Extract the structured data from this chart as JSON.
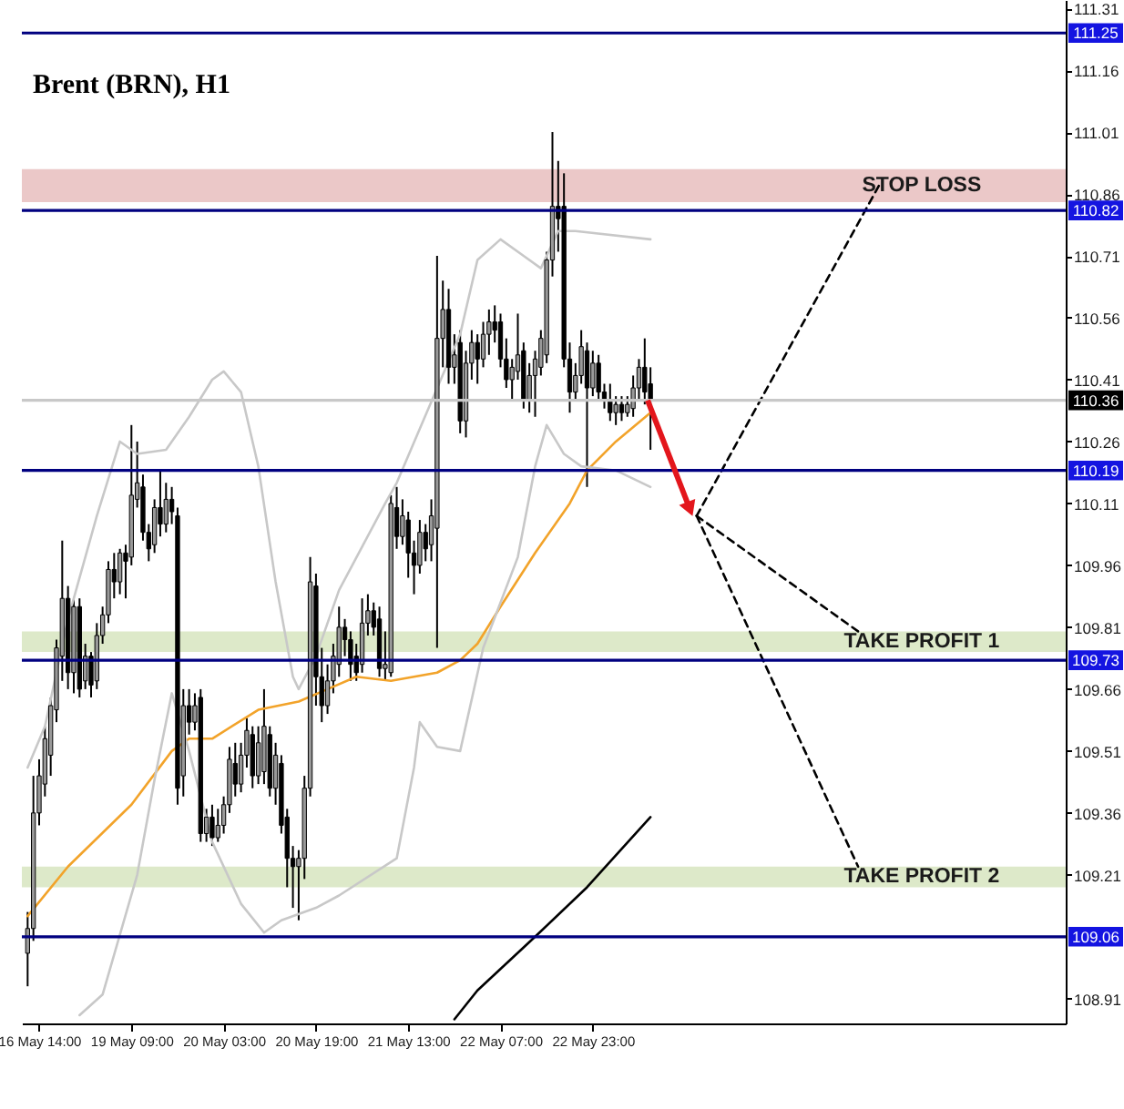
{
  "chart_data": {
    "type": "candlestick",
    "title": "Brent (BRN), H1",
    "categories": [
      null,
      null,
      "16 May 14:00",
      null,
      null,
      null,
      null,
      null,
      null,
      null,
      null,
      null,
      null,
      null,
      null,
      null,
      null,
      null,
      "19 May 09:00",
      null,
      null,
      null,
      null,
      null,
      null,
      null,
      null,
      null,
      null,
      null,
      null,
      null,
      null,
      null,
      "20 May 03:00",
      null,
      null,
      null,
      null,
      null,
      null,
      null,
      null,
      null,
      null,
      null,
      null,
      null,
      null,
      null,
      "20 May 19:00",
      null,
      null,
      null,
      null,
      null,
      null,
      null,
      null,
      null,
      null,
      null,
      null,
      null,
      null,
      null,
      "21 May 13:00",
      null,
      null,
      null,
      null,
      null,
      null,
      null,
      null,
      null,
      null,
      null,
      null,
      null,
      null,
      null,
      "22 May 07:00",
      null,
      null,
      null,
      null,
      null,
      null,
      null,
      null,
      null,
      null,
      null,
      null,
      null,
      null,
      null,
      "22 May 23:00",
      null,
      null,
      null,
      null,
      null,
      null,
      null,
      null,
      null,
      null,
      null,
      null,
      null,
      null,
      null,
      null,
      null,
      null,
      null,
      null,
      null,
      null,
      null,
      null,
      null,
      null,
      null,
      null,
      null,
      null,
      null,
      null,
      null,
      null,
      null,
      null,
      null,
      null,
      null,
      null,
      null,
      null,
      null,
      null,
      null,
      null,
      null,
      null,
      null,
      null,
      null,
      null,
      null,
      null,
      null,
      null,
      null,
      null,
      null,
      null,
      null,
      null,
      null,
      null,
      null,
      null,
      null,
      null,
      null,
      null,
      null,
      null,
      null,
      null,
      null,
      null,
      null,
      null,
      null,
      null,
      null
    ],
    "ohlc": [
      [
        109.02,
        109.12,
        108.94,
        109.08
      ],
      [
        109.08,
        109.45,
        109.05,
        109.36
      ],
      [
        109.36,
        109.49,
        109.33,
        109.45
      ],
      [
        109.43,
        109.57,
        109.4,
        109.54
      ],
      [
        109.5,
        109.64,
        109.45,
        109.62
      ],
      [
        109.61,
        109.78,
        109.58,
        109.76
      ],
      [
        109.74,
        110.02,
        109.68,
        109.88
      ],
      [
        109.88,
        109.91,
        109.66,
        109.7
      ],
      [
        109.7,
        109.88,
        109.65,
        109.86
      ],
      [
        109.86,
        109.88,
        109.64,
        109.66
      ],
      [
        109.68,
        109.77,
        109.66,
        109.74
      ],
      [
        109.74,
        109.75,
        109.64,
        109.67
      ],
      [
        109.68,
        109.82,
        109.66,
        109.79
      ],
      [
        109.79,
        109.86,
        109.77,
        109.84
      ],
      [
        109.84,
        109.97,
        109.82,
        109.95
      ],
      [
        109.95,
        109.99,
        109.88,
        109.92
      ],
      [
        109.92,
        110.0,
        109.89,
        109.99
      ],
      [
        109.99,
        110.01,
        109.88,
        109.97
      ],
      [
        109.98,
        110.3,
        109.96,
        110.13
      ],
      [
        110.12,
        110.26,
        110.1,
        110.16
      ],
      [
        110.15,
        110.18,
        110.02,
        110.04
      ],
      [
        110.04,
        110.06,
        109.97,
        110.0
      ],
      [
        110.01,
        110.12,
        109.99,
        110.1
      ],
      [
        110.1,
        110.19,
        110.03,
        110.06
      ],
      [
        110.06,
        110.16,
        110.04,
        110.12
      ],
      [
        110.12,
        110.15,
        110.06,
        110.09
      ],
      [
        110.08,
        110.1,
        109.38,
        109.42
      ],
      [
        109.45,
        109.66,
        109.4,
        109.62
      ],
      [
        109.62,
        109.66,
        109.55,
        109.58
      ],
      [
        109.58,
        109.65,
        109.56,
        109.62
      ],
      [
        109.64,
        109.66,
        109.29,
        109.31
      ],
      [
        109.31,
        109.37,
        109.29,
        109.35
      ],
      [
        109.35,
        109.38,
        109.28,
        109.3
      ],
      [
        109.3,
        109.37,
        109.29,
        109.33
      ],
      [
        109.33,
        109.4,
        109.31,
        109.38
      ],
      [
        109.38,
        109.52,
        109.36,
        109.49
      ],
      [
        109.48,
        109.53,
        109.4,
        109.43
      ],
      [
        109.43,
        109.53,
        109.41,
        109.5
      ],
      [
        109.5,
        109.59,
        109.47,
        109.56
      ],
      [
        109.55,
        109.57,
        109.42,
        109.45
      ],
      [
        109.45,
        109.57,
        109.43,
        109.53
      ],
      [
        109.46,
        109.66,
        109.43,
        109.57
      ],
      [
        109.55,
        109.57,
        109.4,
        109.42
      ],
      [
        109.42,
        109.53,
        109.38,
        109.5
      ],
      [
        109.48,
        109.5,
        109.31,
        109.33
      ],
      [
        109.35,
        109.37,
        109.18,
        109.25
      ],
      [
        109.25,
        109.28,
        109.13,
        109.23
      ],
      [
        109.23,
        109.27,
        109.1,
        109.25
      ],
      [
        109.25,
        109.45,
        109.2,
        109.42
      ],
      [
        109.42,
        109.98,
        109.4,
        109.92
      ],
      [
        109.91,
        109.94,
        109.62,
        109.69
      ],
      [
        109.69,
        109.76,
        109.58,
        109.62
      ],
      [
        109.62,
        109.72,
        109.6,
        109.68
      ],
      [
        109.68,
        109.77,
        109.65,
        109.74
      ],
      [
        109.72,
        109.86,
        109.69,
        109.81
      ],
      [
        109.81,
        109.83,
        109.74,
        109.78
      ],
      [
        109.78,
        109.8,
        109.68,
        109.72
      ],
      [
        109.74,
        109.77,
        109.68,
        109.7
      ],
      [
        109.72,
        109.88,
        109.7,
        109.82
      ],
      [
        109.82,
        109.89,
        109.79,
        109.85
      ],
      [
        109.85,
        109.87,
        109.79,
        109.81
      ],
      [
        109.83,
        109.86,
        109.69,
        109.71
      ],
      [
        109.71,
        109.8,
        109.68,
        109.72
      ],
      [
        109.7,
        110.13,
        109.69,
        110.11
      ],
      [
        110.1,
        110.15,
        110.0,
        110.03
      ],
      [
        110.03,
        110.12,
        110.01,
        110.08
      ],
      [
        110.07,
        110.09,
        109.93,
        109.99
      ],
      [
        109.99,
        110.02,
        109.89,
        109.96
      ],
      [
        109.96,
        110.07,
        109.94,
        110.04
      ],
      [
        110.04,
        110.06,
        109.97,
        110.0
      ],
      [
        110.01,
        110.12,
        109.97,
        110.08
      ],
      [
        110.05,
        110.71,
        109.76,
        110.51
      ],
      [
        110.51,
        110.65,
        110.44,
        110.58
      ],
      [
        110.58,
        110.63,
        110.4,
        110.44
      ],
      [
        110.44,
        110.52,
        110.4,
        110.47
      ],
      [
        110.5,
        110.53,
        110.28,
        110.31
      ],
      [
        110.31,
        110.48,
        110.27,
        110.45
      ],
      [
        110.45,
        110.53,
        110.41,
        110.5
      ],
      [
        110.5,
        110.52,
        110.4,
        110.46
      ],
      [
        110.46,
        110.55,
        110.44,
        110.52
      ],
      [
        110.52,
        110.58,
        110.47,
        110.55
      ],
      [
        110.55,
        110.59,
        110.5,
        110.53
      ],
      [
        110.55,
        110.57,
        110.44,
        110.46
      ],
      [
        110.46,
        110.51,
        110.39,
        110.41
      ],
      [
        110.41,
        110.46,
        110.36,
        110.44
      ],
      [
        110.43,
        110.57,
        110.41,
        110.47
      ],
      [
        110.48,
        110.5,
        110.34,
        110.36
      ],
      [
        110.36,
        110.45,
        110.33,
        110.42
      ],
      [
        110.42,
        110.48,
        110.32,
        110.46
      ],
      [
        110.44,
        110.53,
        110.42,
        110.51
      ],
      [
        110.47,
        110.72,
        110.45,
        110.7
      ],
      [
        110.7,
        111.01,
        110.66,
        110.83
      ],
      [
        110.83,
        110.94,
        110.72,
        110.8
      ],
      [
        110.83,
        110.91,
        110.44,
        110.46
      ],
      [
        110.46,
        110.5,
        110.33,
        110.38
      ],
      [
        110.38,
        110.45,
        110.36,
        110.42
      ],
      [
        110.42,
        110.53,
        110.4,
        110.49
      ],
      [
        110.48,
        110.5,
        110.15,
        110.39
      ],
      [
        110.39,
        110.48,
        110.37,
        110.45
      ],
      [
        110.45,
        110.47,
        110.36,
        110.38
      ],
      [
        110.38,
        110.4,
        110.34,
        110.36
      ],
      [
        110.36,
        110.4,
        110.31,
        110.33
      ],
      [
        110.33,
        110.37,
        110.3,
        110.35
      ],
      [
        110.35,
        110.37,
        110.31,
        110.33
      ],
      [
        110.33,
        110.37,
        110.32,
        110.35
      ],
      [
        110.34,
        110.42,
        110.32,
        110.39
      ],
      [
        110.39,
        110.46,
        110.36,
        110.44
      ],
      [
        110.44,
        110.51,
        110.35,
        110.38
      ],
      [
        110.4,
        110.44,
        110.24,
        110.36
      ],
      null,
      null,
      null,
      null,
      null,
      null,
      null,
      null,
      null,
      null,
      null,
      null,
      null,
      null,
      null,
      null,
      null,
      null,
      null,
      null,
      null,
      null,
      null,
      null,
      null,
      null,
      null,
      null,
      null,
      null,
      null,
      null,
      null,
      null,
      null,
      null,
      null,
      null,
      null,
      null,
      null,
      null,
      null,
      null,
      null,
      null,
      null,
      null,
      null,
      null,
      null,
      null,
      null,
      null,
      null,
      null,
      null,
      null,
      null,
      null,
      null,
      null,
      null,
      null,
      null,
      null,
      null,
      null,
      null,
      null,
      null
    ],
    "colors": [
      "#999999",
      "#999999",
      "#999999",
      "#999999",
      "#999999",
      "#999999",
      "#999999",
      "#000000",
      "#999999",
      "#000000",
      "#999999",
      "#000000",
      "#999999",
      "#999999",
      "#999999",
      "#000000",
      "#999999",
      "#000000",
      "#999999",
      "#999999",
      "#000000",
      "#000000",
      "#999999",
      "#000000",
      "#999999",
      "#000000",
      "#000000",
      "#999999",
      "#000000",
      "#999999",
      "#000000",
      "#999999",
      "#000000",
      "#999999",
      "#999999",
      "#999999",
      "#000000",
      "#999999",
      "#999999",
      "#000000",
      "#999999",
      "#999999",
      "#000000",
      "#999999",
      "#000000",
      "#000000",
      "#000000",
      "#999999",
      "#999999",
      "#999999",
      "#000000",
      "#000000",
      "#999999",
      "#999999",
      "#999999",
      "#000000",
      "#000000",
      "#000000",
      "#999999",
      "#999999",
      "#000000",
      "#000000",
      "#999999",
      "#999999",
      "#000000",
      "#999999",
      "#000000",
      "#000000",
      "#999999",
      "#000000",
      "#999999",
      "#999999",
      "#999999",
      "#000000",
      "#999999",
      "#000000",
      "#999999",
      "#999999",
      "#000000",
      "#999999",
      "#999999",
      "#000000",
      "#000000",
      "#000000",
      "#999999",
      "#999999",
      "#000000",
      "#999999",
      "#999999",
      "#999999",
      "#999999",
      "#999999",
      "#000000",
      "#000000",
      "#000000",
      "#999999",
      "#999999",
      "#000000",
      "#999999",
      "#000000",
      "#000000",
      "#000000",
      "#999999",
      "#000000",
      "#999999",
      "#999999",
      "#999999",
      "#000000",
      "#000000",
      null,
      null,
      null,
      null,
      null,
      null,
      null,
      null,
      null,
      null,
      null,
      null,
      null,
      null,
      null,
      null,
      null,
      null,
      null,
      null,
      null,
      null,
      null,
      null,
      null,
      null,
      null,
      null,
      null,
      null,
      null,
      null,
      null,
      null,
      null,
      null,
      null,
      null,
      null,
      null,
      null,
      null,
      null,
      null,
      null,
      null,
      null,
      null,
      null,
      null,
      null,
      null,
      null,
      null,
      null,
      null,
      null,
      null,
      null,
      null,
      null,
      null,
      null,
      null,
      null,
      null,
      null,
      null,
      null,
      null,
      null
    ],
    "series": [
      {
        "type": "line",
        "color": "#f2a32a",
        "values": [
          109.11,
          null,
          null,
          null,
          null,
          null,
          null,
          109.23,
          null,
          null,
          null,
          null,
          null,
          null,
          null,
          null,
          null,
          null,
          109.38,
          null,
          null,
          null,
          null,
          null,
          null,
          109.51,
          null,
          null,
          109.54,
          null,
          null,
          null,
          109.54,
          null,
          null,
          null,
          null,
          null,
          null,
          null,
          109.61,
          null,
          null,
          null,
          null,
          null,
          null,
          109.63,
          null,
          null,
          null,
          null,
          109.66,
          null,
          null,
          null,
          null,
          109.69,
          null,
          null,
          null,
          null,
          null,
          109.68,
          null,
          null,
          null,
          null,
          null,
          null,
          null,
          109.7,
          null,
          null,
          null,
          109.73,
          null,
          null,
          109.77,
          null,
          null,
          null,
          109.86,
          null,
          null,
          null,
          null,
          null,
          109.99,
          null,
          null,
          null,
          null,
          null,
          110.11,
          null,
          null,
          110.19,
          null,
          null,
          null,
          null,
          110.26,
          null,
          null,
          null,
          null,
          null,
          110.33,
          null,
          null,
          null,
          null,
          null,
          null,
          null,
          null,
          null,
          null,
          null,
          null,
          null,
          null,
          null,
          null,
          null,
          null,
          null,
          null,
          null,
          null,
          null,
          null,
          null,
          null,
          null,
          null,
          null,
          null,
          null,
          null,
          null,
          null,
          null,
          null,
          null,
          null,
          null,
          null,
          null,
          null,
          null,
          null,
          null,
          null,
          null,
          null,
          null,
          null,
          null,
          null,
          null,
          null,
          null,
          null,
          null,
          null,
          null,
          null,
          null,
          null,
          null,
          null,
          null,
          null,
          null,
          null,
          null,
          null,
          null
        ]
      },
      {
        "type": "line",
        "color": "#c8c8c8",
        "values": [
          109.47,
          null,
          null,
          109.57,
          null,
          null,
          null,
          109.83,
          null,
          null,
          null,
          null,
          110.08,
          null,
          null,
          null,
          110.26,
          null,
          null,
          110.23,
          null,
          null,
          null,
          null,
          110.24,
          null,
          null,
          null,
          110.32,
          null,
          null,
          null,
          110.41,
          null,
          110.43,
          null,
          null,
          110.38,
          null,
          null,
          110.2,
          null,
          null,
          109.92,
          null,
          null,
          109.69,
          109.66,
          null,
          null,
          109.74,
          null,
          null,
          null,
          109.9,
          null,
          null,
          null,
          null,
          null,
          null,
          null,
          110.11,
          null,
          110.16,
          null,
          null,
          null,
          null,
          null,
          null,
          null,
          null,
          null,
          null,
          110.52,
          null,
          null,
          110.7,
          null,
          null,
          null,
          110.75,
          null,
          null,
          null,
          110.71,
          null,
          null,
          110.68,
          null,
          null,
          110.77,
          null,
          null,
          110.77,
          null,
          null,
          null,
          null,
          null,
          null,
          null,
          null,
          null,
          null,
          null,
          null,
          110.75,
          null,
          null,
          null,
          null,
          null,
          null,
          null,
          null,
          null,
          null,
          null,
          null,
          null,
          null,
          null,
          null,
          null,
          null,
          null,
          null,
          null,
          null,
          null,
          null,
          null,
          null,
          null,
          null,
          null,
          null,
          null,
          null,
          null,
          null,
          null,
          null,
          null,
          null,
          null,
          null,
          null,
          null,
          null,
          null,
          null,
          null,
          null,
          null,
          null,
          null,
          null,
          null,
          null,
          null,
          null,
          null,
          null,
          null,
          null,
          null,
          null,
          null,
          null,
          null,
          null,
          null,
          null,
          null,
          null,
          null,
          null
        ]
      },
      {
        "type": "line",
        "color": "#c8c8c8",
        "values": [
          null,
          null,
          null,
          null,
          null,
          null,
          null,
          null,
          null,
          108.87,
          null,
          null,
          null,
          108.92,
          null,
          null,
          null,
          null,
          null,
          109.21,
          null,
          null,
          109.44,
          null,
          null,
          109.65,
          null,
          null,
          109.51,
          null,
          null,
          null,
          109.29,
          null,
          null,
          null,
          null,
          109.14,
          null,
          null,
          null,
          109.07,
          null,
          null,
          109.1,
          null,
          null,
          null,
          null,
          null,
          109.13,
          null,
          null,
          null,
          109.16,
          null,
          null,
          null,
          null,
          null,
          null,
          null,
          null,
          null,
          109.25,
          null,
          null,
          109.47,
          109.58,
          null,
          null,
          109.52,
          null,
          null,
          null,
          109.51,
          null,
          null,
          null,
          109.76,
          null,
          null,
          null,
          null,
          null,
          109.98,
          null,
          null,
          110.2,
          null,
          110.3,
          null,
          null,
          110.23,
          null,
          null,
          110.2,
          null,
          null,
          null,
          null,
          null,
          110.19,
          null,
          null,
          null,
          null,
          null,
          110.15,
          null,
          null,
          null,
          null,
          null,
          null,
          null,
          null,
          null,
          null,
          null,
          null,
          null,
          null,
          null,
          null,
          null,
          null,
          null,
          null,
          null,
          null,
          null,
          null,
          null,
          null,
          null,
          null,
          null,
          null,
          null,
          null,
          null,
          null,
          null,
          null,
          null,
          null,
          null,
          null,
          null,
          null,
          null,
          null,
          null,
          null,
          null,
          null,
          null,
          null,
          null,
          null,
          null,
          null,
          null,
          null,
          null,
          null,
          null,
          null,
          null,
          null,
          null,
          null,
          null,
          null,
          null,
          null,
          null,
          null,
          null
        ]
      },
      {
        "type": "line",
        "color": "#000000",
        "values": [
          null,
          null,
          null,
          null,
          null,
          null,
          null,
          null,
          null,
          null,
          null,
          null,
          null,
          null,
          null,
          null,
          null,
          null,
          null,
          null,
          null,
          null,
          null,
          null,
          null,
          null,
          null,
          null,
          null,
          null,
          null,
          null,
          null,
          null,
          null,
          null,
          null,
          null,
          null,
          null,
          null,
          null,
          null,
          null,
          null,
          null,
          null,
          null,
          null,
          null,
          null,
          null,
          null,
          null,
          null,
          null,
          null,
          null,
          null,
          null,
          null,
          null,
          null,
          null,
          null,
          null,
          null,
          null,
          null,
          null,
          null,
          null,
          null,
          null,
          108.86,
          null,
          null,
          null,
          108.93,
          null,
          null,
          null,
          null,
          null,
          null,
          null,
          null,
          null,
          109.06,
          null,
          null,
          null,
          null,
          null,
          null,
          null,
          null,
          109.18,
          null,
          null,
          null,
          null,
          null,
          null,
          null,
          null,
          null,
          null,
          109.35,
          null,
          null,
          null,
          null,
          null,
          null,
          null,
          null,
          null,
          null,
          null,
          null,
          null,
          null,
          null,
          null,
          null,
          null,
          null,
          null,
          null,
          null,
          null,
          null,
          null,
          null,
          null,
          null,
          null,
          null,
          null,
          null,
          null,
          null,
          null,
          null,
          null,
          null,
          null,
          null,
          null,
          null,
          null,
          null,
          null,
          null,
          null,
          null,
          null,
          null,
          null,
          null,
          null,
          null,
          null,
          null,
          null,
          null,
          null,
          null,
          null,
          null,
          null,
          null,
          null,
          null,
          null,
          null,
          null,
          null,
          null
        ]
      },
      {
        "type": "line",
        "color": "#000000",
        "line_style": "dashed",
        "values": [
          null,
          null,
          null,
          null,
          null,
          null,
          null,
          null,
          null,
          null,
          null,
          null,
          null,
          null,
          null,
          null,
          null,
          null,
          null,
          null,
          null,
          null,
          null,
          null,
          null,
          null,
          null,
          null,
          null,
          null,
          null,
          null,
          null,
          null,
          null,
          null,
          null,
          null,
          null,
          null,
          null,
          null,
          null,
          null,
          null,
          null,
          null,
          null,
          null,
          null,
          null,
          null,
          null,
          null,
          null,
          null,
          null,
          null,
          null,
          null,
          null,
          null,
          null,
          null,
          null,
          null,
          null,
          null,
          null,
          null,
          null,
          null,
          null,
          null,
          null,
          null,
          null,
          null,
          null,
          null,
          null,
          null,
          null,
          null,
          null,
          null,
          null,
          null,
          null,
          null,
          null,
          null,
          null,
          null,
          null,
          null,
          null,
          null,
          null,
          null,
          null,
          null,
          null,
          null,
          null,
          null,
          null,
          null,
          null,
          null,
          null,
          null,
          null,
          null,
          null,
          null,
          110.08,
          null,
          null,
          null,
          null,
          null,
          null,
          null,
          null,
          null,
          null,
          null,
          null,
          null,
          null,
          null,
          null,
          null,
          null,
          null,
          null,
          null,
          null,
          null,
          null,
          null,
          null,
          null,
          null,
          null,
          null,
          null,
          110.89,
          null,
          null,
          null,
          null,
          null,
          null,
          null,
          null,
          null,
          null,
          null,
          null,
          null,
          null,
          null,
          null,
          null,
          null,
          null,
          null,
          null,
          null,
          null,
          null,
          null,
          null,
          null,
          null,
          null,
          null,
          null
        ]
      },
      {
        "type": "line",
        "color": "#000000",
        "line_style": "dashed",
        "values": [
          null,
          null,
          null,
          null,
          null,
          null,
          null,
          null,
          null,
          null,
          null,
          null,
          null,
          null,
          null,
          null,
          null,
          null,
          null,
          null,
          null,
          null,
          null,
          null,
          null,
          null,
          null,
          null,
          null,
          null,
          null,
          null,
          null,
          null,
          null,
          null,
          null,
          null,
          null,
          null,
          null,
          null,
          null,
          null,
          null,
          null,
          null,
          null,
          null,
          null,
          null,
          null,
          null,
          null,
          null,
          null,
          null,
          null,
          null,
          null,
          null,
          null,
          null,
          null,
          null,
          null,
          null,
          null,
          null,
          null,
          null,
          null,
          null,
          null,
          null,
          null,
          null,
          null,
          null,
          null,
          null,
          null,
          null,
          null,
          null,
          null,
          null,
          null,
          null,
          null,
          null,
          null,
          null,
          null,
          null,
          null,
          null,
          null,
          null,
          null,
          null,
          null,
          null,
          null,
          null,
          null,
          null,
          null,
          null,
          null,
          null,
          null,
          null,
          null,
          null,
          null,
          110.08,
          null,
          null,
          null,
          null,
          null,
          null,
          null,
          null,
          null,
          null,
          null,
          null,
          null,
          null,
          null,
          null,
          null,
          null,
          null,
          null,
          null,
          null,
          null,
          null,
          null,
          null,
          null,
          109.8,
          null,
          null,
          null,
          null,
          null,
          null,
          null,
          null,
          null,
          null,
          null,
          null,
          null,
          null,
          null,
          null,
          null,
          null,
          null,
          null,
          null,
          null,
          null,
          null,
          null,
          null,
          null,
          null,
          null,
          null,
          null,
          null,
          null,
          null,
          null
        ]
      },
      {
        "type": "line",
        "color": "#000000",
        "line_style": "dashed",
        "values": [
          null,
          null,
          null,
          null,
          null,
          null,
          null,
          null,
          null,
          null,
          null,
          null,
          null,
          null,
          null,
          null,
          null,
          null,
          null,
          null,
          null,
          null,
          null,
          null,
          null,
          null,
          null,
          null,
          null,
          null,
          null,
          null,
          null,
          null,
          null,
          null,
          null,
          null,
          null,
          null,
          null,
          null,
          null,
          null,
          null,
          null,
          null,
          null,
          null,
          null,
          null,
          null,
          null,
          null,
          null,
          null,
          null,
          null,
          null,
          null,
          null,
          null,
          null,
          null,
          null,
          null,
          null,
          null,
          null,
          null,
          null,
          null,
          null,
          null,
          null,
          null,
          null,
          null,
          null,
          null,
          null,
          null,
          null,
          null,
          null,
          null,
          null,
          null,
          null,
          null,
          null,
          null,
          null,
          null,
          null,
          null,
          null,
          null,
          null,
          null,
          null,
          null,
          null,
          null,
          null,
          null,
          null,
          null,
          null,
          null,
          null,
          null,
          null,
          null,
          null,
          null,
          110.08,
          null,
          null,
          null,
          null,
          null,
          null,
          null,
          null,
          null,
          null,
          null,
          null,
          null,
          null,
          null,
          null,
          null,
          null,
          null,
          null,
          null,
          null,
          null,
          null,
          null,
          null,
          null,
          109.23,
          null,
          null,
          null,
          null,
          null,
          null,
          null,
          null,
          null,
          null,
          null,
          null,
          null,
          null,
          null,
          null,
          null,
          null,
          null,
          null,
          null,
          null,
          null,
          null,
          null,
          null,
          null,
          null,
          null,
          null,
          null,
          null,
          null,
          null,
          null
        ]
      }
    ],
    "ylim": [
      108.85,
      111.33
    ],
    "yticks": [
      111.31,
      111.16,
      111.01,
      110.86,
      110.71,
      110.56,
      110.41,
      110.26,
      110.11,
      109.96,
      109.81,
      109.66,
      109.51,
      109.36,
      109.21,
      108.91
    ],
    "ref_lines": [
      {
        "axis": "y",
        "value": 111.25,
        "label": "111.25",
        "color": "#000080"
      },
      {
        "axis": "y",
        "value": 110.82,
        "label": "110.82",
        "color": "#000080"
      },
      {
        "axis": "y",
        "value": 110.36,
        "label": "110.36",
        "color": "#c8c8c8"
      },
      {
        "axis": "y",
        "value": 110.19,
        "label": "110.19",
        "color": "#000080"
      },
      {
        "axis": "y",
        "value": 109.73,
        "label": "109.73",
        "color": "#000080"
      },
      {
        "axis": "y",
        "value": 109.06,
        "label": "109.06",
        "color": "#000080"
      }
    ],
    "bands": [
      {
        "axis": "y",
        "from": 110.84,
        "to": 110.92,
        "label": "STOP LOSS",
        "color": "#ebc8c8"
      },
      {
        "axis": "y",
        "from": 109.75,
        "to": 109.8,
        "label": "TAKE PROFIT 1",
        "color": "#dde9c9"
      },
      {
        "axis": "y",
        "from": 109.18,
        "to": 109.23,
        "label": "TAKE PROFIT 2",
        "color": "#dde9c9"
      }
    ]
  }
}
